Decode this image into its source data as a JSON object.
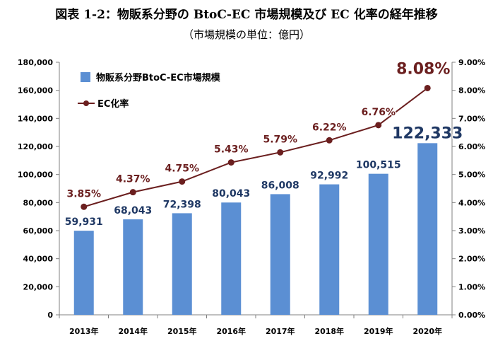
{
  "title": "図表 1-2：物販系分野の BtoC-EC 市場規模及び EC 化率の経年推移",
  "subtitle": "（市場規模の単位：億円）",
  "chart_data": {
    "type": "bar",
    "categories": [
      "2013年",
      "2014年",
      "2015年",
      "2016年",
      "2017年",
      "2018年",
      "2019年",
      "2020年"
    ],
    "series": [
      {
        "name": "物販系分野BtoC-EC市場規模",
        "type": "bar",
        "axis": "left",
        "values": [
          59931,
          68043,
          72398,
          80043,
          86008,
          92992,
          100515,
          122333
        ],
        "labels": [
          "59,931",
          "68,043",
          "72,398",
          "80,043",
          "86,008",
          "92,992",
          "100,515",
          "122,333"
        ],
        "color": "#5B8FD3"
      },
      {
        "name": "EC化率",
        "type": "line",
        "axis": "right",
        "values": [
          3.85,
          4.37,
          4.75,
          5.43,
          5.79,
          6.22,
          6.76,
          8.08
        ],
        "labels": [
          "3.85%",
          "4.37%",
          "4.75%",
          "5.43%",
          "5.79%",
          "6.22%",
          "6.76%",
          "8.08%"
        ],
        "color": "#6B1F1F"
      }
    ],
    "y_left": {
      "lim": [
        0,
        180000
      ],
      "ticks": [
        "0",
        "20,000",
        "40,000",
        "60,000",
        "80,000",
        "100,000",
        "120,000",
        "140,000",
        "160,000",
        "180,000"
      ]
    },
    "y_right": {
      "lim": [
        0,
        9
      ],
      "ticks": [
        "0.00%",
        "1.00%",
        "2.00%",
        "3.00%",
        "4.00%",
        "5.00%",
        "6.00%",
        "7.00%",
        "8.00%",
        "9.00%"
      ]
    },
    "legend": "top-left",
    "grid": false,
    "colors": {
      "bar_label": "#1F3864",
      "line_label": "#6B1F1F",
      "axis": "#808080"
    }
  }
}
